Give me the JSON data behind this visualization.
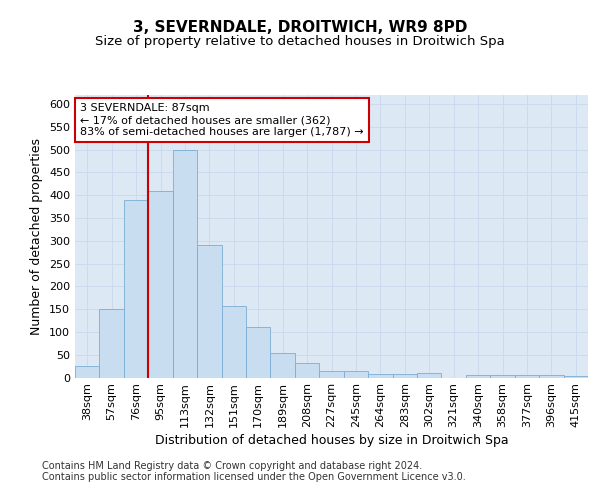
{
  "title": "3, SEVERNDALE, DROITWICH, WR9 8PD",
  "subtitle": "Size of property relative to detached houses in Droitwich Spa",
  "xlabel": "Distribution of detached houses by size in Droitwich Spa",
  "ylabel": "Number of detached properties",
  "bar_color": "#c8ddf0",
  "bar_edge_color": "#7aadd4",
  "background_color": "#dde8f5",
  "fig_background": "#ffffff",
  "bin_labels": [
    "38sqm",
    "57sqm",
    "76sqm",
    "95sqm",
    "113sqm",
    "132sqm",
    "151sqm",
    "170sqm",
    "189sqm",
    "208sqm",
    "227sqm",
    "245sqm",
    "264sqm",
    "283sqm",
    "302sqm",
    "321sqm",
    "340sqm",
    "358sqm",
    "377sqm",
    "396sqm",
    "415sqm"
  ],
  "bar_heights": [
    25,
    150,
    390,
    410,
    500,
    290,
    158,
    110,
    54,
    32,
    15,
    14,
    8,
    8,
    9,
    0,
    5,
    6,
    5,
    5,
    3
  ],
  "ylim": [
    0,
    620
  ],
  "yticks": [
    0,
    50,
    100,
    150,
    200,
    250,
    300,
    350,
    400,
    450,
    500,
    550,
    600
  ],
  "vline_color": "#cc0000",
  "annotation_text": "3 SEVERNDALE: 87sqm\n← 17% of detached houses are smaller (362)\n83% of semi-detached houses are larger (1,787) →",
  "annotation_box_color": "#ffffff",
  "annotation_box_edge": "#cc0000",
  "footer_text": "Contains HM Land Registry data © Crown copyright and database right 2024.\nContains public sector information licensed under the Open Government Licence v3.0.",
  "grid_color": "#c8d8ec",
  "title_fontsize": 11,
  "subtitle_fontsize": 9.5,
  "axis_label_fontsize": 9,
  "tick_fontsize": 8,
  "annotation_fontsize": 8,
  "footer_fontsize": 7
}
